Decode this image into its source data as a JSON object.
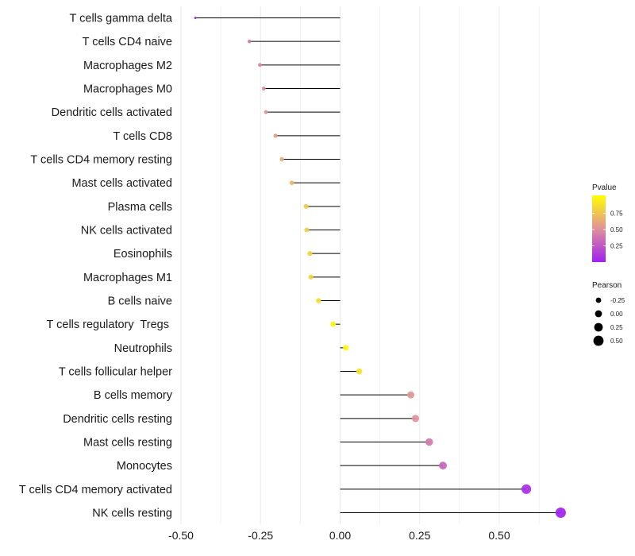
{
  "chart_data": {
    "type": "lollipop",
    "title": "",
    "xlabel": "",
    "ylabel": "",
    "xlim": [
      -0.5,
      0.7
    ],
    "x_ticks": [
      -0.5,
      -0.25,
      0,
      0.25,
      0.5
    ],
    "x_tick_labels": [
      "-0.50",
      "-0.25",
      "0.00",
      "0.25",
      "0.50"
    ],
    "grid": true,
    "points": [
      {
        "label": "T cells gamma delta",
        "pearson": -0.455,
        "pvalue": 0.02
      },
      {
        "label": "T cells CD4 naive",
        "pearson": -0.285,
        "pvalue": 0.38
      },
      {
        "label": "Macrophages M2",
        "pearson": -0.252,
        "pvalue": 0.45
      },
      {
        "label": "Macrophages M0",
        "pearson": -0.24,
        "pvalue": 0.48
      },
      {
        "label": "Dendritic cells activated",
        "pearson": -0.233,
        "pvalue": 0.5
      },
      {
        "label": "T cells CD8",
        "pearson": -0.203,
        "pvalue": 0.57
      },
      {
        "label": "T cells CD4 memory resting",
        "pearson": -0.183,
        "pvalue": 0.62
      },
      {
        "label": "Mast cells activated",
        "pearson": -0.152,
        "pvalue": 0.68
      },
      {
        "label": "Plasma cells",
        "pearson": -0.107,
        "pvalue": 0.77
      },
      {
        "label": "NK cells activated",
        "pearson": -0.105,
        "pvalue": 0.78
      },
      {
        "label": "Eosinophils",
        "pearson": -0.095,
        "pvalue": 0.8
      },
      {
        "label": "Macrophages M1",
        "pearson": -0.092,
        "pvalue": 0.8
      },
      {
        "label": "B cells naive",
        "pearson": -0.068,
        "pvalue": 0.85
      },
      {
        "label": "T cells regulatory  Tregs ",
        "pearson": -0.022,
        "pvalue": 0.96
      },
      {
        "label": "Neutrophils",
        "pearson": 0.018,
        "pvalue": 0.96
      },
      {
        "label": "T cells follicular helper",
        "pearson": 0.06,
        "pvalue": 0.88
      },
      {
        "label": "B cells memory",
        "pearson": 0.222,
        "pvalue": 0.52
      },
      {
        "label": "Dendritic cells resting",
        "pearson": 0.237,
        "pvalue": 0.49
      },
      {
        "label": "Mast cells resting",
        "pearson": 0.28,
        "pvalue": 0.39
      },
      {
        "label": "Monocytes",
        "pearson": 0.323,
        "pvalue": 0.3
      },
      {
        "label": "T cells CD4 memory activated",
        "pearson": 0.585,
        "pvalue": 0.06
      },
      {
        "label": "NK cells resting",
        "pearson": 0.693,
        "pvalue": 0.01
      }
    ],
    "legend": {
      "position": "right",
      "color": {
        "title": "Pvalue",
        "ticks": [
          0.25,
          0.5,
          0.75
        ],
        "tick_labels": [
          "0.25",
          "0.50",
          "0.75"
        ],
        "range": [
          0,
          1
        ],
        "low_color": "#a020f0",
        "mid_color": "#e0919b",
        "high_color": "#ffff00"
      },
      "size": {
        "title": "Pearson",
        "values": [
          -0.25,
          0,
          0.25,
          0.5
        ],
        "labels": [
          "-0.25",
          "0.00",
          "0.25",
          "0.50"
        ]
      }
    },
    "colors": {
      "segment": "#000000",
      "grid": "#ebebeb"
    }
  }
}
